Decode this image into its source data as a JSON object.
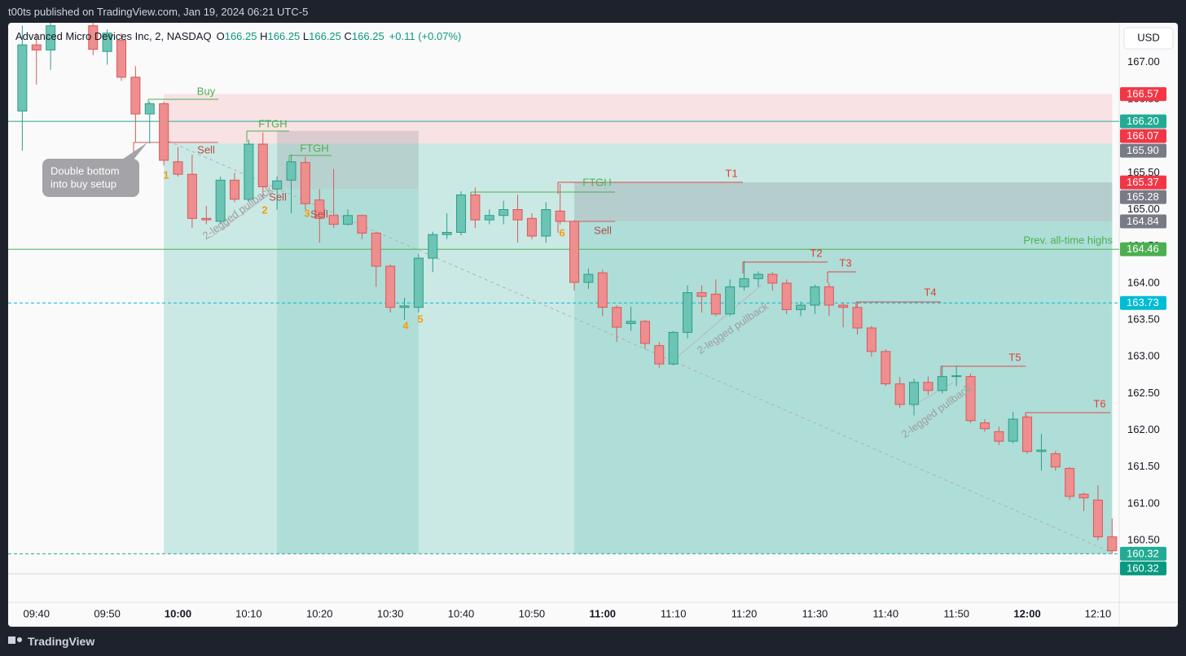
{
  "header": {
    "published": "t00ts published on TradingView.com, Jan 19, 2024 06:21 UTC-5",
    "symbol": "Advanced Micro Devices Inc, 2, NASDAQ",
    "ohlc": [
      {
        "label": "O",
        "value": "166.25"
      },
      {
        "label": "H",
        "value": "166.25"
      },
      {
        "label": "L",
        "value": "166.25"
      },
      {
        "label": "C",
        "value": "166.25"
      }
    ],
    "change": "+0.11 (+0.07%)",
    "currency": "USD"
  },
  "footer": {
    "brand": "TradingView"
  },
  "chart_data": {
    "type": "candlestick",
    "grid": false,
    "up_color": "#6cc4b5",
    "down_color": "#ee8e8e",
    "x": [
      "09:38",
      "09:40",
      "09:42",
      "09:48",
      "09:50",
      "09:52",
      "09:54",
      "09:56",
      "09:58",
      "10:00",
      "10:02",
      "10:04",
      "10:06",
      "10:08",
      "10:10",
      "10:12",
      "10:14",
      "10:16",
      "10:18",
      "10:20",
      "10:22",
      "10:24",
      "10:26",
      "10:28",
      "10:30",
      "10:32",
      "10:34",
      "10:36",
      "10:38",
      "10:40",
      "10:42",
      "10:44",
      "10:46",
      "10:48",
      "10:50",
      "10:52",
      "10:54",
      "10:56",
      "10:58",
      "11:00",
      "11:02",
      "11:04",
      "11:06",
      "11:08",
      "11:10",
      "11:12",
      "11:14",
      "11:16",
      "11:18",
      "11:20",
      "11:22",
      "11:24",
      "11:26",
      "11:28",
      "11:30",
      "11:32",
      "11:34",
      "11:36",
      "11:38",
      "11:40",
      "11:42",
      "11:44",
      "11:46",
      "11:48",
      "11:50",
      "11:52",
      "11:54",
      "11:56",
      "11:58",
      "12:00",
      "12:02",
      "12:04",
      "12:06",
      "12:08",
      "12:10",
      "12:12"
    ],
    "open": [
      166.34,
      167.24,
      167.17,
      167.5,
      167.15,
      167.3,
      166.8,
      166.3,
      166.44,
      165.65,
      165.48,
      164.88,
      164.84,
      165.4,
      165.14,
      165.89,
      165.28,
      165.4,
      165.64,
      165.13,
      164.92,
      164.8,
      164.92,
      164.68,
      164.23,
      163.67,
      163.67,
      164.34,
      164.66,
      164.69,
      165.2,
      164.86,
      164.92,
      165.0,
      164.88,
      164.64,
      164.98,
      164.84,
      164.01,
      164.14,
      163.67,
      163.45,
      163.48,
      163.15,
      162.9,
      163.33,
      163.87,
      163.85,
      163.58,
      163.95,
      164.06,
      164.12,
      164.0,
      163.64,
      163.7,
      163.95,
      163.7,
      163.67,
      163.39,
      163.07,
      162.63,
      162.35,
      162.65,
      162.54,
      162.73,
      162.73,
      162.1,
      161.98,
      161.85,
      162.18,
      161.71,
      161.68,
      161.48,
      161.13,
      161.05,
      160.55
    ],
    "high": [
      167.5,
      167.4,
      167.55,
      167.6,
      167.45,
      167.4,
      166.95,
      166.47,
      166.47,
      165.85,
      165.75,
      165.05,
      165.45,
      165.5,
      165.95,
      166.05,
      165.45,
      165.75,
      165.72,
      165.28,
      165.55,
      165.0,
      164.93,
      164.7,
      164.25,
      163.8,
      164.4,
      164.7,
      164.95,
      165.25,
      165.3,
      165.0,
      165.12,
      165.2,
      164.95,
      165.1,
      165.35,
      164.86,
      164.2,
      164.18,
      163.7,
      163.68,
      163.5,
      163.2,
      163.35,
      163.97,
      163.97,
      164.05,
      164.05,
      164.3,
      164.16,
      164.15,
      164.05,
      163.75,
      163.98,
      164.0,
      163.74,
      163.74,
      163.42,
      163.1,
      162.72,
      162.7,
      162.73,
      162.88,
      162.88,
      162.77,
      162.15,
      162.05,
      162.25,
      162.2,
      161.95,
      161.72,
      161.5,
      161.15,
      161.25,
      160.8
    ],
    "low": [
      165.8,
      166.7,
      166.9,
      167.1,
      166.97,
      166.75,
      165.92,
      165.9,
      165.6,
      165.45,
      164.75,
      164.8,
      164.8,
      165.1,
      165.1,
      165.15,
      165.0,
      164.95,
      165.0,
      164.55,
      164.75,
      164.78,
      164.6,
      163.95,
      163.6,
      163.5,
      163.6,
      164.15,
      164.6,
      164.65,
      164.75,
      164.8,
      164.8,
      164.55,
      164.6,
      164.55,
      164.8,
      163.9,
      163.92,
      163.55,
      163.2,
      163.35,
      163.1,
      162.85,
      162.88,
      163.25,
      163.6,
      163.55,
      163.55,
      163.9,
      163.95,
      163.9,
      163.58,
      163.55,
      163.58,
      163.55,
      163.4,
      163.3,
      163.0,
      162.6,
      162.3,
      162.2,
      162.48,
      162.5,
      162.6,
      162.1,
      161.98,
      161.8,
      161.82,
      161.68,
      161.45,
      161.45,
      161.05,
      160.9,
      160.5,
      160.32
    ],
    "close": [
      167.24,
      167.17,
      167.5,
      167.18,
      167.4,
      166.8,
      166.3,
      166.44,
      165.67,
      165.48,
      164.88,
      164.86,
      165.4,
      165.14,
      165.89,
      165.31,
      165.39,
      165.65,
      165.08,
      164.88,
      164.8,
      164.92,
      164.68,
      164.23,
      163.67,
      163.69,
      164.34,
      164.66,
      164.69,
      165.2,
      164.86,
      164.92,
      165.0,
      164.86,
      164.64,
      165.0,
      164.84,
      164.01,
      164.12,
      163.67,
      163.4,
      163.48,
      163.18,
      162.9,
      163.33,
      163.87,
      163.82,
      163.58,
      163.95,
      164.06,
      164.12,
      164.0,
      163.64,
      163.7,
      163.95,
      163.7,
      163.67,
      163.39,
      163.07,
      162.63,
      162.35,
      162.65,
      162.54,
      162.73,
      162.74,
      162.13,
      162.02,
      161.85,
      162.15,
      161.71,
      161.73,
      161.5,
      161.1,
      161.08,
      160.55,
      160.36
    ],
    "xlim": [
      "09:36",
      "12:13"
    ],
    "xticks": [
      "09:40",
      "09:50",
      "10:00",
      "10:10",
      "10:20",
      "10:30",
      "10:40",
      "10:50",
      "11:00",
      "11:10",
      "11:20",
      "11:30",
      "11:40",
      "11:50",
      "12:00",
      "12:10"
    ],
    "ylim": [
      159.66,
      167.54
    ],
    "yticks": [
      {
        "value": 160.5,
        "label": "160.50"
      },
      {
        "value": 161,
        "label": "161.00"
      },
      {
        "value": 161.5,
        "label": "161.50"
      },
      {
        "value": 162,
        "label": "162.00"
      },
      {
        "value": 162.5,
        "label": "162.50"
      },
      {
        "value": 163,
        "label": "163.00"
      },
      {
        "value": 163.5,
        "label": "163.50"
      },
      {
        "value": 164,
        "label": "164.00"
      },
      {
        "value": 164.5,
        "label": "164.50"
      },
      {
        "value": 165,
        "label": "165.00"
      },
      {
        "value": 165.5,
        "label": "165.50"
      },
      {
        "value": 166,
        "label": "166.00"
      },
      {
        "value": 166.5,
        "label": "166.50"
      },
      {
        "value": 167,
        "label": "167.00"
      }
    ],
    "zones": [
      {
        "x": [
          "09:58",
          "12:12"
        ],
        "y": [
          166.57,
          165.9
        ],
        "color": "rgba(242,54,69,0.12)"
      },
      {
        "x": [
          "09:58",
          "12:12"
        ],
        "y": [
          165.9,
          160.32
        ],
        "color": "rgba(34,171,148,0.22)"
      },
      {
        "x": [
          "10:14",
          "10:34"
        ],
        "y": [
          166.07,
          165.28
        ],
        "color": "rgba(120,123,134,0.22)"
      },
      {
        "x": [
          "10:14",
          "10:34"
        ],
        "y": [
          165.28,
          160.32
        ],
        "color": "rgba(34,171,148,0.16)"
      },
      {
        "x": [
          "10:56",
          "12:12"
        ],
        "y": [
          165.37,
          164.84
        ],
        "color": "rgba(120,123,134,0.25)"
      },
      {
        "x": [
          "10:56",
          "12:12"
        ],
        "y": [
          164.84,
          160.32
        ],
        "color": "rgba(34,171,148,0.16)"
      }
    ],
    "price_labels": [
      {
        "value": 166.57,
        "color": "#f23645"
      },
      {
        "value": {
          "value": 166.2,
          "label": "166.20"
        },
        "color": "#22ab94",
        "line": "solid"
      },
      {
        "value": 166.07,
        "color": "#f23645"
      },
      {
        "value": {
          "value": 165.9,
          "label": "165.90"
        },
        "color": "#787b86"
      },
      {
        "value": 165.37,
        "color": "#f23645"
      },
      {
        "value": 165.28,
        "color": "#787b86"
      },
      {
        "value": 164.84,
        "color": "#787b86"
      },
      {
        "value": 164.46,
        "color": "#4caf50",
        "line": "solid",
        "text": "Prev. all-time highs"
      },
      {
        "value": 163.73,
        "color": "#00bcd4",
        "line": "dashed"
      },
      {
        "value": 160.32,
        "color": "#22ab94",
        "line": "dashed"
      },
      {
        "value": 160.32,
        "color": "#089981"
      }
    ],
    "annotations": [
      "Buy",
      "Sell",
      "FTGH",
      "FTGH",
      "Sell",
      "Sell",
      "FTGH",
      "T1",
      "Sell",
      "T2",
      "T3",
      "T4",
      "T5",
      "T6",
      "1",
      "2",
      "3",
      "4",
      "5",
      "6",
      "2-legged pullback",
      "2-legged pullback",
      "2-legged pullback"
    ],
    "callout": [
      "Double bottom",
      "into buy setup"
    ]
  }
}
